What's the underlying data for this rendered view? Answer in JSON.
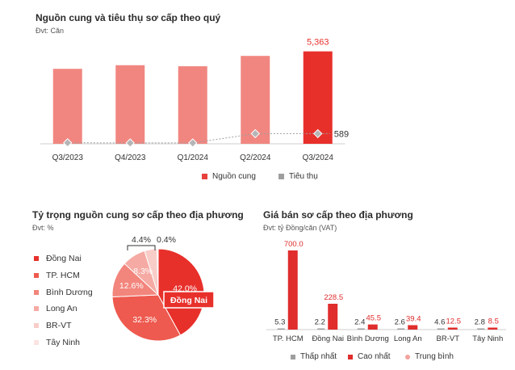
{
  "supply_chart": {
    "title": "Nguồn cung và tiêu thụ sơ cấp theo quý",
    "unit": "Đvt: Căn",
    "legend": [
      {
        "label": "Nguồn cung",
        "color": "#e8413c"
      },
      {
        "label": "Tiêu thụ",
        "color": "#9e9e9e"
      }
    ]
  },
  "share_chart": {
    "title": "Tỷ trọng nguồn cung sơ cấp theo địa phương",
    "unit": "Đvt: %",
    "callout": "Đồng Nai"
  },
  "price_chart": {
    "title": "Giá bán sơ cấp theo địa phương",
    "unit": "Đvt: tỷ Đồng/căn (VAT)",
    "legend": [
      {
        "label": "Thấp nhất",
        "color": "#9e9e9e"
      },
      {
        "label": "Cao nhất",
        "color": "#e02d2d"
      },
      {
        "label": "Trung bình",
        "color": "#f3a29c"
      }
    ]
  },
  "chart_data": [
    {
      "type": "bar",
      "title": "Nguồn cung và tiêu thụ sơ cấp theo quý",
      "categories": [
        "Q3/2023",
        "Q4/2023",
        "Q1/2024",
        "Q2/2024",
        "Q3/2024"
      ],
      "series": [
        {
          "name": "Nguồn cung",
          "values": [
            4350,
            4560,
            4500,
            5100,
            5363
          ],
          "color": "#f18680",
          "highlight_color": "#e8302b"
        },
        {
          "name": "Tiêu thụ",
          "values": [
            60,
            50,
            50,
            589,
            589
          ],
          "color": "#9e9e9e"
        }
      ],
      "data_labels": {
        "Nguồn cung_last": "5,363",
        "Tiêu thụ_last": "589"
      },
      "ylim": [
        0,
        6000
      ],
      "grid": false,
      "legend_position": "bottom"
    },
    {
      "type": "pie",
      "title": "Tỷ trọng nguồn cung sơ cấp theo địa phương",
      "categories": [
        "Đồng Nai",
        "TP. HCM",
        "Bình Dương",
        "Long An",
        "BR-VT",
        "Tây Ninh"
      ],
      "values": [
        42.0,
        32.3,
        12.6,
        8.3,
        4.4,
        0.4
      ],
      "labels": [
        "42.0%",
        "32.3%",
        "12.6%",
        "8.3%",
        "4.4%",
        "0.4%"
      ],
      "colors": [
        "#e8302b",
        "#ee5a4f",
        "#f2857c",
        "#f5aaa3",
        "#f8cdc8",
        "#fbe4e1"
      ],
      "legend_position": "left"
    },
    {
      "type": "bar",
      "title": "Giá bán sơ cấp theo địa phương",
      "categories": [
        "TP. HCM",
        "Đồng Nai",
        "Bình Dương",
        "Long An",
        "BR-VT",
        "Tây Ninh"
      ],
      "series": [
        {
          "name": "Thấp nhất",
          "values": [
            5.3,
            2.2,
            2.4,
            2.6,
            4.6,
            2.8
          ]
        },
        {
          "name": "Cao nhất",
          "values": [
            700.0,
            228.5,
            45.5,
            39.4,
            12.5,
            8.5
          ]
        },
        {
          "name": "Trung bình",
          "values": [
            null,
            null,
            null,
            null,
            null,
            null
          ]
        }
      ],
      "labels_min": [
        "5.3",
        "2.2",
        "2.4",
        "2.6",
        "4.6",
        "2.8"
      ],
      "labels_max": [
        "700.0",
        "228.5",
        "45.5",
        "39.4",
        "12.5",
        "8.5"
      ],
      "ylim": [
        0,
        750
      ],
      "grid": false,
      "legend_position": "bottom"
    }
  ]
}
